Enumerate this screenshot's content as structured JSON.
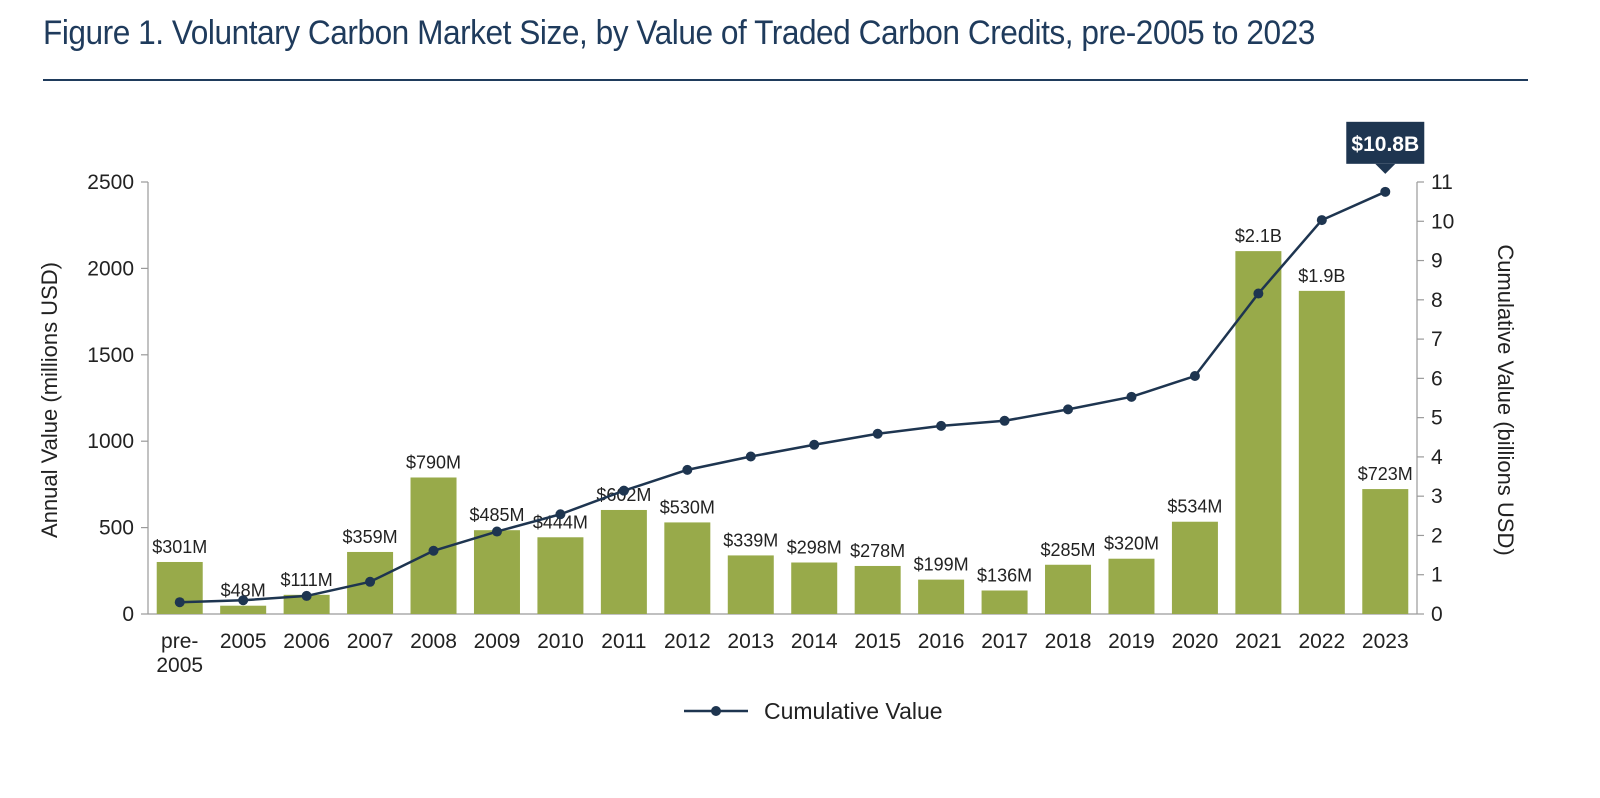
{
  "figure": {
    "title": "Figure 1. Voluntary Carbon Market Size, by Value of Traded Carbon Credits, pre-2005 to 2023"
  },
  "colors": {
    "bar": "#98aa4a",
    "line": "#1e3550",
    "title": "#1f3b5c"
  },
  "chart_data": {
    "type": "bar",
    "categories": [
      "pre-2005",
      "2005",
      "2006",
      "2007",
      "2008",
      "2009",
      "2010",
      "2011",
      "2012",
      "2013",
      "2014",
      "2015",
      "2016",
      "2017",
      "2018",
      "2019",
      "2020",
      "2021",
      "2022",
      "2023"
    ],
    "category_labels": [
      [
        "pre-",
        "2005"
      ],
      [
        "2005"
      ],
      [
        "2006"
      ],
      [
        "2007"
      ],
      [
        "2008"
      ],
      [
        "2009"
      ],
      [
        "2010"
      ],
      [
        "2011"
      ],
      [
        "2012"
      ],
      [
        "2013"
      ],
      [
        "2014"
      ],
      [
        "2015"
      ],
      [
        "2016"
      ],
      [
        "2017"
      ],
      [
        "2018"
      ],
      [
        "2019"
      ],
      [
        "2020"
      ],
      [
        "2021"
      ],
      [
        "2022"
      ],
      [
        "2023"
      ]
    ],
    "series": [
      {
        "type": "bar",
        "axis": "left",
        "values": [
          301,
          48,
          111,
          359,
          790,
          485,
          444,
          602,
          530,
          339,
          298,
          278,
          199,
          136,
          285,
          320,
          534,
          2100,
          1870,
          723
        ],
        "data_labels": [
          "$301M",
          "$48M",
          "$111M",
          "$359M",
          "$790M",
          "$485M",
          "$444M",
          "$602M",
          "$530M",
          "$339M",
          "$298M",
          "$278M",
          "$199M",
          "$136M",
          "$285M",
          "$320M",
          "$534M",
          "$2.1B",
          "$1.9B",
          "$723M"
        ]
      },
      {
        "name": "Cumulative Value",
        "type": "line",
        "axis": "right",
        "values": [
          0.3,
          0.35,
          0.46,
          0.82,
          1.61,
          2.1,
          2.54,
          3.14,
          3.67,
          4.01,
          4.31,
          4.59,
          4.79,
          4.92,
          5.21,
          5.53,
          6.06,
          8.16,
          10.03,
          10.75
        ]
      }
    ],
    "callout": {
      "label": "$10.8B",
      "category": "2023"
    },
    "ylabel": "Annual Value (millions USD)",
    "ylim": [
      0,
      2500
    ],
    "yticks": [
      0,
      500,
      1000,
      1500,
      2000,
      2500
    ],
    "y2label": "Cumulative Value (billions USD)",
    "y2lim": [
      0,
      11
    ],
    "y2ticks": [
      0,
      1,
      2,
      3,
      4,
      5,
      6,
      7,
      8,
      9,
      10,
      11
    ],
    "legend": {
      "position": "bottom",
      "entries": [
        "Cumulative Value"
      ]
    },
    "grid": false
  }
}
